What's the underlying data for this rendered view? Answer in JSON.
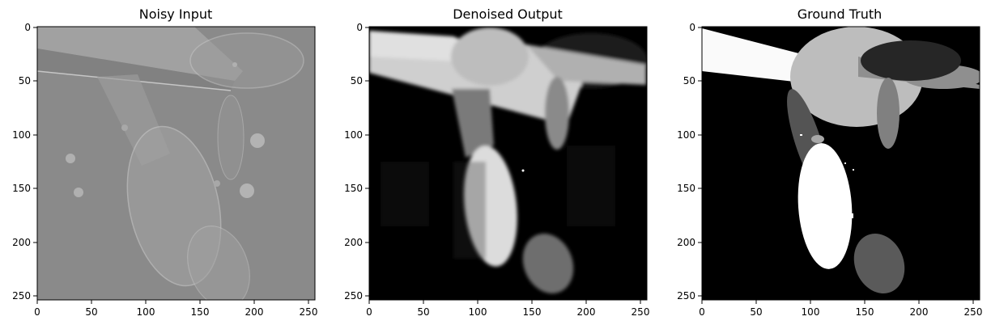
{
  "figure": {
    "panels": [
      {
        "title": "Noisy Input",
        "x_ticks": [
          "0",
          "50",
          "100",
          "150",
          "200",
          "250"
        ],
        "y_ticks": [
          "0",
          "50",
          "100",
          "150",
          "200",
          "250"
        ]
      },
      {
        "title": "Denoised Output",
        "x_ticks": [
          "0",
          "50",
          "100",
          "150",
          "200",
          "250"
        ],
        "y_ticks": [
          "0",
          "50",
          "100",
          "150",
          "200",
          "250"
        ]
      },
      {
        "title": "Ground Truth",
        "x_ticks": [
          "0",
          "50",
          "100",
          "150",
          "200",
          "250"
        ],
        "y_ticks": [
          "0",
          "50",
          "100",
          "150",
          "200",
          "250"
        ]
      }
    ]
  }
}
